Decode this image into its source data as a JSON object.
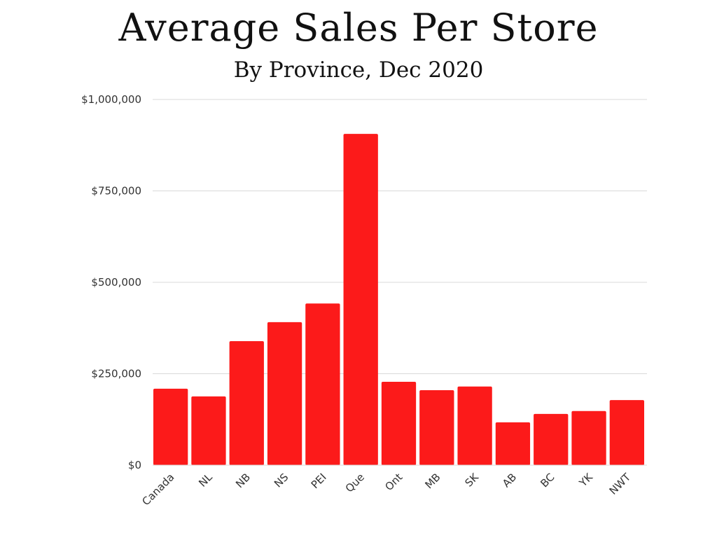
{
  "chart_data": {
    "type": "bar",
    "title": "Average Sales Per Store",
    "subtitle": "By Province, Dec 2020",
    "xlabel": "",
    "ylabel": "",
    "categories": [
      "Canada",
      "NL",
      "NB",
      "NS",
      "PEI",
      "Que",
      "Ont",
      "MB",
      "SK",
      "AB",
      "BC",
      "YK",
      "NWT"
    ],
    "values": [
      209000,
      188000,
      339000,
      391000,
      442000,
      906000,
      228000,
      205000,
      215000,
      117000,
      140000,
      148000,
      178000
    ],
    "ylim": [
      0,
      1000000
    ],
    "yticks": [
      0,
      250000,
      500000,
      750000,
      1000000
    ],
    "ytick_labels": [
      "$0",
      "$250,000",
      "$500,000",
      "$750,000",
      "$1,000,000"
    ],
    "grid": true,
    "bar_color": "#fc1a1a",
    "grid_color": "#d9d9d9"
  }
}
